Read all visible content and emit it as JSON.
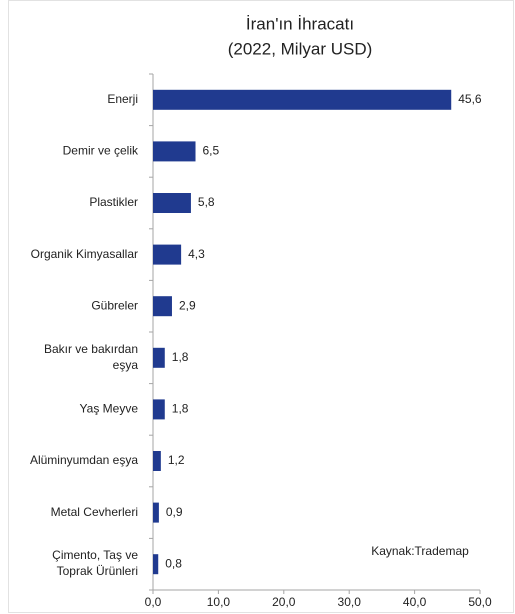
{
  "chart_data": {
    "type": "barh",
    "title": "İran'ın İhracatı",
    "subtitle": "(2022, Milyar USD)",
    "annotation": "Kaynak:Trademap",
    "categories": [
      "Enerji",
      "Demir ve çelik",
      "Plastikler",
      "Organik Kimyasallar",
      "Gübreler",
      "Bakır ve bakırdan\neşya",
      "Yaş Meyve",
      "Alüminyumdan eşya",
      "Metal Cevherleri",
      "Çimento, Taş ve\nToprak Ürünleri"
    ],
    "values": [
      45.6,
      6.5,
      5.8,
      4.3,
      2.9,
      1.8,
      1.8,
      1.2,
      0.9,
      0.8
    ],
    "value_labels": [
      "45,6",
      "6,5",
      "5,8",
      "4,3",
      "2,9",
      "1,8",
      "1,8",
      "1,2",
      "0,9",
      "0,8"
    ],
    "color": "#203a8f",
    "xlim": [
      0,
      50
    ],
    "xticks": [
      {
        "value": 0,
        "label": "0,0"
      },
      {
        "value": 10,
        "label": "10,0"
      },
      {
        "value": 20,
        "label": "20,0"
      },
      {
        "value": 30,
        "label": "30,0"
      },
      {
        "value": 40,
        "label": "40,0"
      },
      {
        "value": 50,
        "label": "50,0"
      }
    ]
  }
}
